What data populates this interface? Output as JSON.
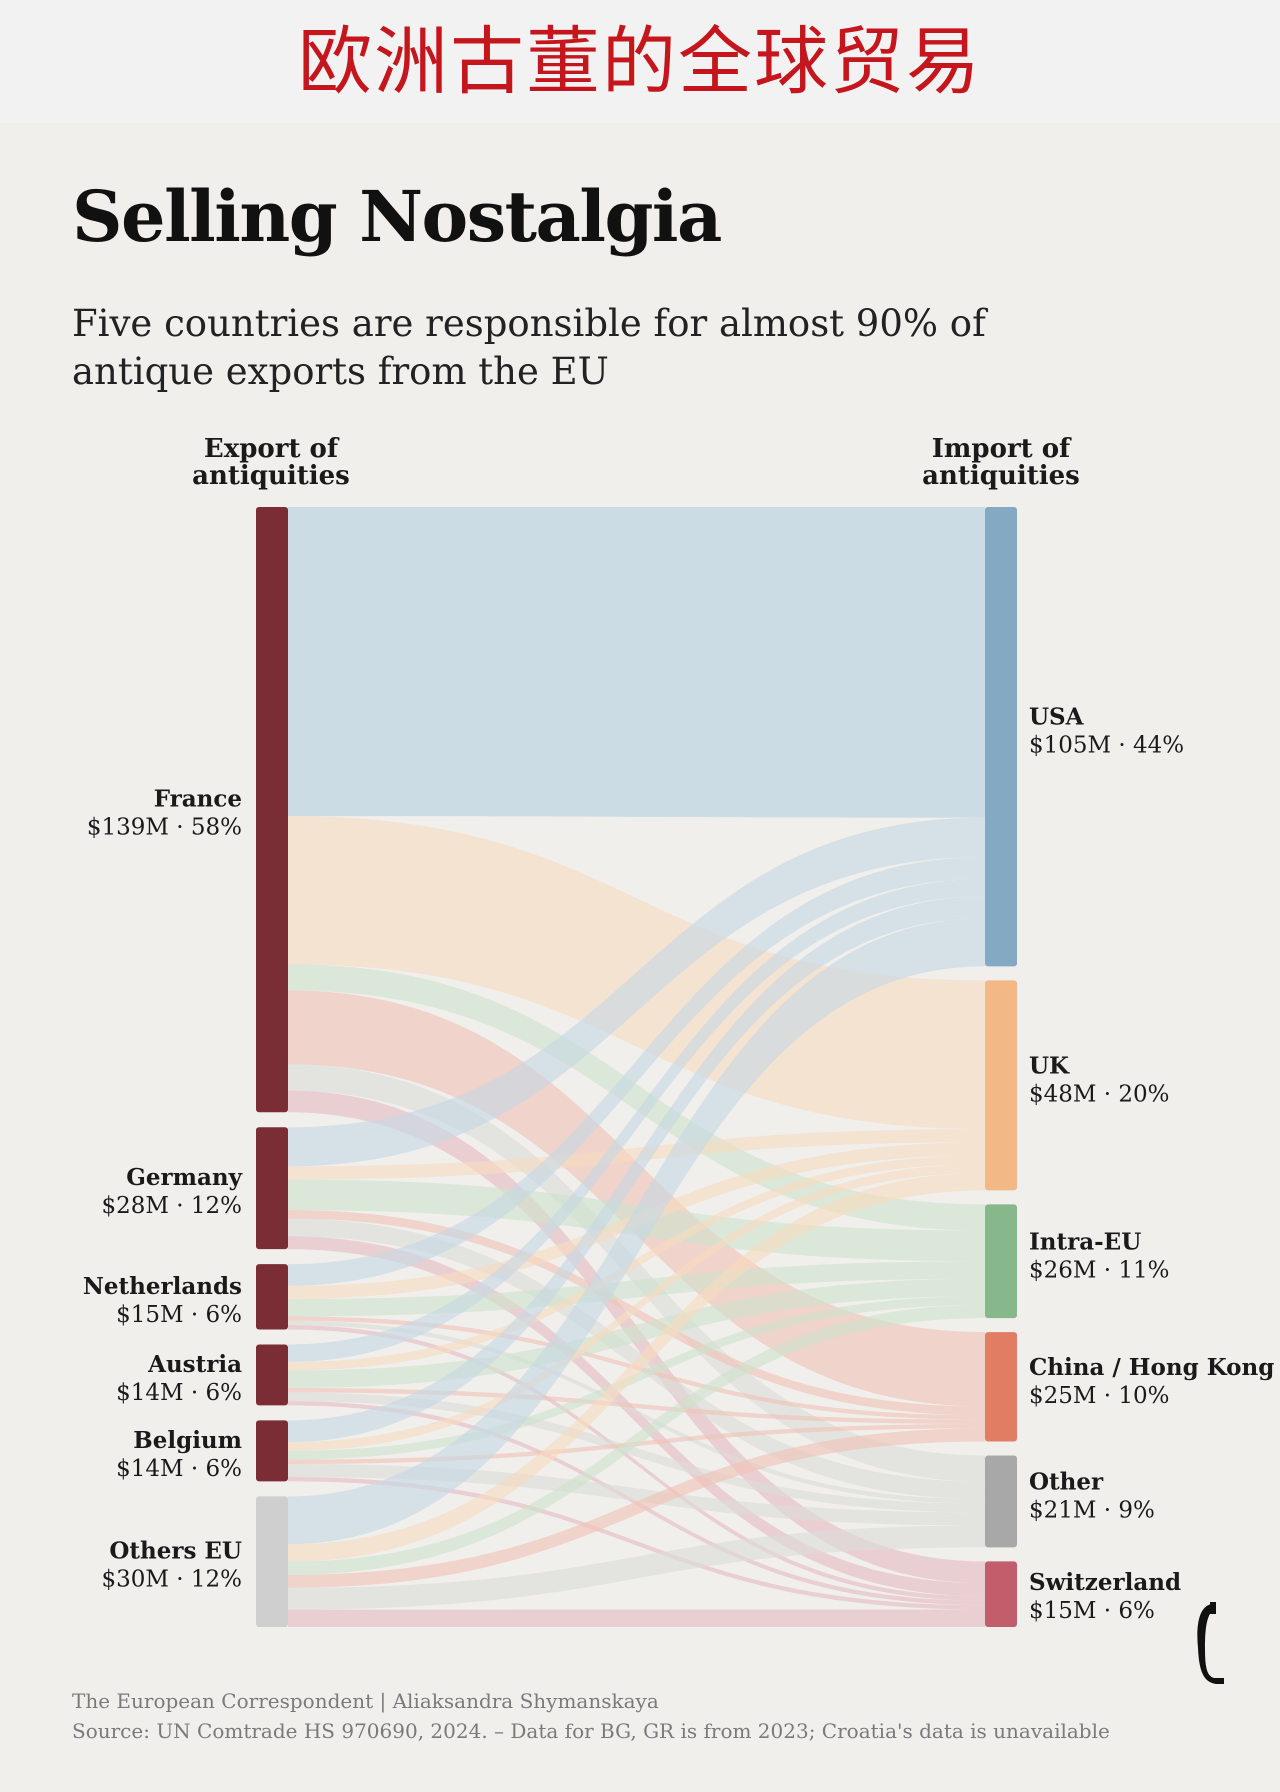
{
  "banner": {
    "title": "欧洲古董的全球贸易"
  },
  "header": {
    "title": "Selling Nostalgia",
    "subtitle": "Five countries are responsible for almost 90% of antique exports from the EU"
  },
  "columns": {
    "left": "Export of antiquities",
    "right": "Import of antiquities"
  },
  "footer": {
    "credit": "The European Correspondent | Aliaksandra Shymanskaya",
    "source": "Source: UN Comtrade HS 970690, 2024. – Data for BG, GR is from 2023; Croatia's data is unavailable"
  },
  "logo": {
    "icon": "correspondent-logo-icon"
  },
  "chart_data": {
    "type": "sankey",
    "unit": "$M",
    "sources": [
      {
        "name": "France",
        "value": 139,
        "share": "58%",
        "label": "$139M · 58%",
        "color": "#7b2d35"
      },
      {
        "name": "Germany",
        "value": 28,
        "share": "12%",
        "label": "$28M · 12%",
        "color": "#7b2d35"
      },
      {
        "name": "Netherlands",
        "value": 15,
        "share": "6%",
        "label": "$15M · 6%",
        "color": "#7b2d35"
      },
      {
        "name": "Austria",
        "value": 14,
        "share": "6%",
        "label": "$14M · 6%",
        "color": "#7b2d35"
      },
      {
        "name": "Belgium",
        "value": 14,
        "share": "6%",
        "label": "$14M · 6%",
        "color": "#7b2d35"
      },
      {
        "name": "Others EU",
        "value": 30,
        "share": "12%",
        "label": "$30M · 12%",
        "color": "#cfcfcf"
      }
    ],
    "targets": [
      {
        "name": "USA",
        "value": 105,
        "share": "44%",
        "label": "$105M · 44%",
        "color": "#84a9c3",
        "flow_color": "#c7d9e4"
      },
      {
        "name": "UK",
        "value": 48,
        "share": "20%",
        "label": "$48M · 20%",
        "color": "#f2b886",
        "flow_color": "#f7dcc0"
      },
      {
        "name": "Intra-EU",
        "value": 26,
        "share": "11%",
        "label": "$26M · 11%",
        "color": "#86b88b",
        "flow_color": "#cfe2cc"
      },
      {
        "name": "China / Hong Kong",
        "value": 25,
        "share": "10%",
        "label": "$25M · 10%",
        "color": "#e07d63",
        "flow_color": "#f0c2b4"
      },
      {
        "name": "Other",
        "value": 21,
        "share": "9%",
        "label": "$21M · 9%",
        "color": "#a8a8a8",
        "flow_color": "#dcdbd8"
      },
      {
        "name": "Switzerland",
        "value": 15,
        "share": "6%",
        "label": "$15M · 6%",
        "color": "#c25d6c",
        "flow_color": "#e7bcc2"
      }
    ],
    "flows": [
      {
        "from": "France",
        "to": "USA",
        "value": 71
      },
      {
        "from": "France",
        "to": "UK",
        "value": 34
      },
      {
        "from": "France",
        "to": "Intra-EU",
        "value": 6
      },
      {
        "from": "France",
        "to": "China / Hong Kong",
        "value": 17
      },
      {
        "from": "France",
        "to": "Other",
        "value": 6
      },
      {
        "from": "France",
        "to": "Switzerland",
        "value": 5
      },
      {
        "from": "Germany",
        "to": "USA",
        "value": 9
      },
      {
        "from": "Germany",
        "to": "UK",
        "value": 3
      },
      {
        "from": "Germany",
        "to": "Intra-EU",
        "value": 7
      },
      {
        "from": "Germany",
        "to": "China / Hong Kong",
        "value": 2
      },
      {
        "from": "Germany",
        "to": "Other",
        "value": 4
      },
      {
        "from": "Germany",
        "to": "Switzerland",
        "value": 3
      },
      {
        "from": "Netherlands",
        "to": "USA",
        "value": 5
      },
      {
        "from": "Netherlands",
        "to": "UK",
        "value": 3
      },
      {
        "from": "Netherlands",
        "to": "Intra-EU",
        "value": 4
      },
      {
        "from": "Netherlands",
        "to": "China / Hong Kong",
        "value": 1
      },
      {
        "from": "Netherlands",
        "to": "Other",
        "value": 1
      },
      {
        "from": "Netherlands",
        "to": "Switzerland",
        "value": 1
      },
      {
        "from": "Austria",
        "to": "USA",
        "value": 4
      },
      {
        "from": "Austria",
        "to": "UK",
        "value": 2
      },
      {
        "from": "Austria",
        "to": "Intra-EU",
        "value": 4
      },
      {
        "from": "Austria",
        "to": "China / Hong Kong",
        "value": 1
      },
      {
        "from": "Austria",
        "to": "Other",
        "value": 2
      },
      {
        "from": "Austria",
        "to": "Switzerland",
        "value": 1
      },
      {
        "from": "Belgium",
        "to": "USA",
        "value": 5
      },
      {
        "from": "Belgium",
        "to": "UK",
        "value": 2
      },
      {
        "from": "Belgium",
        "to": "Intra-EU",
        "value": 2
      },
      {
        "from": "Belgium",
        "to": "China / Hong Kong",
        "value": 1
      },
      {
        "from": "Belgium",
        "to": "Other",
        "value": 3
      },
      {
        "from": "Belgium",
        "to": "Switzerland",
        "value": 1
      },
      {
        "from": "Others EU",
        "to": "USA",
        "value": 11
      },
      {
        "from": "Others EU",
        "to": "UK",
        "value": 4
      },
      {
        "from": "Others EU",
        "to": "Intra-EU",
        "value": 3
      },
      {
        "from": "Others EU",
        "to": "China / Hong Kong",
        "value": 3
      },
      {
        "from": "Others EU",
        "to": "Other",
        "value": 5
      },
      {
        "from": "Others EU",
        "to": "Switzerland",
        "value": 4
      }
    ]
  }
}
